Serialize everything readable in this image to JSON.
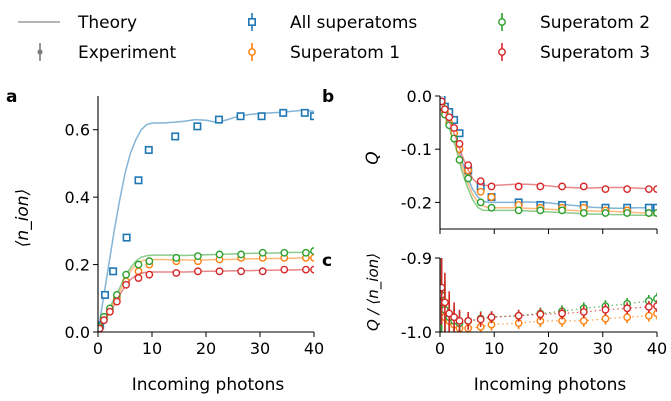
{
  "legend": [
    {
      "label": "Theory",
      "kind": "line",
      "color": "#a9a9a9"
    },
    {
      "label": "Experiment",
      "kind": "errpoint",
      "color": "#7f7f7f"
    },
    {
      "label": "All superatoms",
      "kind": "square",
      "color": "#1f77b4"
    },
    {
      "label": "Superatom 1",
      "kind": "circle",
      "color": "#ff7f0e"
    },
    {
      "label": "Superatom 2",
      "kind": "circle",
      "color": "#2ca02c"
    },
    {
      "label": "Superatom 3",
      "kind": "circle",
      "color": "#d62728"
    }
  ],
  "chart_data": [
    {
      "panel": "a",
      "type": "scatter",
      "xlabel": "Incoming photons",
      "ylabel": "⟨n_ion⟩",
      "xlim": [
        0,
        40
      ],
      "ylim": [
        0,
        0.7
      ],
      "xticks": [
        0,
        10,
        20,
        30,
        40
      ],
      "yticks": [
        0.0,
        0.2,
        0.4,
        0.6
      ],
      "ytick_labels": [
        "0.0",
        "0.2",
        "0.4",
        "0.6"
      ],
      "series": [
        {
          "name": "All superatoms",
          "color": "#1f77b4",
          "marker": "square",
          "x": [
            0.4,
            1.3,
            2.8,
            5.3,
            7.5,
            9.4,
            14.3,
            18.4,
            22.4,
            26.4,
            30.3,
            34.3,
            38.3,
            40
          ],
          "y": [
            0.02,
            0.11,
            0.18,
            0.28,
            0.45,
            0.54,
            0.58,
            0.61,
            0.63,
            0.64,
            0.64,
            0.65,
            0.65,
            0.64
          ],
          "theory_x": [
            0,
            1,
            2,
            3,
            4,
            5,
            6,
            7,
            8,
            9,
            10,
            12,
            14,
            16,
            18,
            20,
            22,
            24,
            26,
            28,
            30,
            32,
            34,
            36,
            38,
            40
          ],
          "theory_y": [
            0.0,
            0.1,
            0.2,
            0.3,
            0.39,
            0.47,
            0.53,
            0.57,
            0.6,
            0.615,
            0.62,
            0.62,
            0.622,
            0.625,
            0.63,
            0.628,
            0.622,
            0.63,
            0.64,
            0.645,
            0.648,
            0.65,
            0.652,
            0.655,
            0.658,
            0.655
          ]
        },
        {
          "name": "Superatom 1",
          "color": "#ff7f0e",
          "marker": "circle",
          "x": [
            0.3,
            1.1,
            2.2,
            3.5,
            5.2,
            7.5,
            9.5,
            14.5,
            18.5,
            22.5,
            26.5,
            30.5,
            34.5,
            38.5,
            40
          ],
          "y": [
            0.01,
            0.04,
            0.06,
            0.1,
            0.15,
            0.18,
            0.2,
            0.21,
            0.21,
            0.215,
            0.22,
            0.22,
            0.22,
            0.22,
            0.22
          ],
          "theory_x": [
            0,
            1,
            2,
            3,
            4,
            5,
            6,
            7,
            8,
            9,
            10,
            12,
            14,
            16,
            18,
            20,
            22,
            24,
            26,
            28,
            30,
            32,
            34,
            36,
            38,
            40
          ],
          "theory_y": [
            0.0,
            0.03,
            0.06,
            0.09,
            0.12,
            0.15,
            0.18,
            0.2,
            0.21,
            0.215,
            0.215,
            0.215,
            0.214,
            0.214,
            0.213,
            0.214,
            0.215,
            0.215,
            0.216,
            0.217,
            0.217,
            0.218,
            0.218,
            0.219,
            0.22,
            0.22
          ]
        },
        {
          "name": "Superatom 2",
          "color": "#2ca02c",
          "marker": "circle",
          "x": [
            0.3,
            1.1,
            2.2,
            3.5,
            5.2,
            7.5,
            9.5,
            14.5,
            18.5,
            22.5,
            26.5,
            30.5,
            34.5,
            38.5,
            40
          ],
          "y": [
            0.015,
            0.045,
            0.07,
            0.11,
            0.17,
            0.2,
            0.21,
            0.22,
            0.225,
            0.23,
            0.23,
            0.235,
            0.235,
            0.235,
            0.24
          ],
          "theory_x": [
            0,
            1,
            2,
            3,
            4,
            5,
            6,
            7,
            8,
            9,
            10,
            12,
            14,
            16,
            18,
            20,
            22,
            24,
            26,
            28,
            30,
            32,
            34,
            36,
            38,
            40
          ],
          "theory_y": [
            0.0,
            0.035,
            0.065,
            0.1,
            0.13,
            0.165,
            0.19,
            0.21,
            0.222,
            0.226,
            0.228,
            0.228,
            0.228,
            0.227,
            0.228,
            0.229,
            0.23,
            0.231,
            0.232,
            0.233,
            0.234,
            0.234,
            0.235,
            0.236,
            0.236,
            0.237
          ]
        },
        {
          "name": "Superatom 3",
          "color": "#d62728",
          "marker": "circle",
          "x": [
            0.3,
            1.1,
            2.2,
            3.5,
            5.2,
            7.5,
            9.5,
            14.5,
            18.5,
            22.5,
            26.5,
            30.5,
            34.5,
            38.5,
            40
          ],
          "y": [
            0.01,
            0.035,
            0.06,
            0.09,
            0.14,
            0.16,
            0.17,
            0.175,
            0.18,
            0.18,
            0.18,
            0.18,
            0.185,
            0.185,
            0.185
          ],
          "theory_x": [
            0,
            1,
            2,
            3,
            4,
            5,
            6,
            7,
            8,
            9,
            10,
            12,
            14,
            16,
            18,
            20,
            22,
            24,
            26,
            28,
            30,
            32,
            34,
            36,
            38,
            40
          ],
          "theory_y": [
            0.0,
            0.03,
            0.055,
            0.08,
            0.11,
            0.135,
            0.155,
            0.168,
            0.175,
            0.177,
            0.178,
            0.178,
            0.178,
            0.178,
            0.179,
            0.18,
            0.18,
            0.181,
            0.182,
            0.182,
            0.183,
            0.183,
            0.184,
            0.184,
            0.185,
            0.185
          ]
        }
      ]
    },
    {
      "panel": "b",
      "type": "scatter",
      "xlabel": "",
      "ylabel": "Q",
      "xlim": [
        0,
        40
      ],
      "ylim": [
        -0.25,
        0.0
      ],
      "xticks": [
        0,
        10,
        20,
        30,
        40
      ],
      "yticks": [
        0.0,
        -0.1,
        -0.2
      ],
      "ytick_labels": [
        "0.0",
        "-0.1",
        "-0.2"
      ],
      "series": [
        {
          "name": "All superatoms",
          "color": "#1f77b4",
          "marker": "square",
          "x": [
            0.3,
            0.9,
            1.7,
            2.6,
            3.6,
            5.2,
            7.5,
            9.5,
            14.5,
            18.5,
            22.5,
            26.5,
            30.5,
            34.5,
            38.5,
            40
          ],
          "y": [
            -0.005,
            -0.02,
            -0.03,
            -0.045,
            -0.07,
            -0.14,
            -0.17,
            -0.19,
            -0.2,
            -0.205,
            -0.205,
            -0.205,
            -0.21,
            -0.21,
            -0.21,
            -0.21
          ],
          "theory_x": [
            0,
            1,
            2,
            3,
            4,
            5,
            6,
            7,
            8,
            9,
            10,
            12,
            14,
            16,
            18,
            20,
            22,
            24,
            26,
            28,
            30,
            32,
            34,
            36,
            38,
            40
          ],
          "theory_y": [
            -0.005,
            -0.025,
            -0.05,
            -0.08,
            -0.12,
            -0.15,
            -0.175,
            -0.19,
            -0.198,
            -0.2,
            -0.2,
            -0.2,
            -0.2,
            -0.199,
            -0.2,
            -0.201,
            -0.203,
            -0.205,
            -0.207,
            -0.209,
            -0.21,
            -0.211,
            -0.211,
            -0.21,
            -0.21,
            -0.21
          ]
        },
        {
          "name": "Superatom 1",
          "color": "#ff7f0e",
          "marker": "circle",
          "x": [
            0.3,
            0.9,
            1.7,
            2.6,
            3.6,
            5.2,
            7.5,
            9.5,
            14.5,
            18.5,
            22.5,
            26.5,
            30.5,
            34.5,
            38.5,
            40
          ],
          "y": [
            -0.015,
            -0.03,
            -0.05,
            -0.07,
            -0.1,
            -0.14,
            -0.18,
            -0.19,
            -0.205,
            -0.21,
            -0.21,
            -0.21,
            -0.215,
            -0.215,
            -0.22,
            -0.22
          ],
          "theory_x": [
            0,
            1,
            2,
            3,
            4,
            5,
            6,
            7,
            8,
            9,
            10,
            12,
            14,
            16,
            18,
            20,
            22,
            24,
            26,
            28,
            30,
            32,
            34,
            36,
            38,
            40
          ],
          "theory_y": [
            -0.01,
            -0.035,
            -0.06,
            -0.09,
            -0.13,
            -0.16,
            -0.185,
            -0.2,
            -0.207,
            -0.21,
            -0.21,
            -0.21,
            -0.21,
            -0.211,
            -0.212,
            -0.213,
            -0.214,
            -0.215,
            -0.216,
            -0.216,
            -0.217,
            -0.217,
            -0.218,
            -0.219,
            -0.22,
            -0.22
          ]
        },
        {
          "name": "Superatom 2",
          "color": "#2ca02c",
          "marker": "circle",
          "x": [
            0.3,
            0.9,
            1.7,
            2.6,
            3.6,
            5.2,
            7.5,
            9.5,
            14.5,
            18.5,
            22.5,
            26.5,
            30.5,
            34.5,
            38.5,
            40
          ],
          "y": [
            -0.02,
            -0.035,
            -0.055,
            -0.08,
            -0.12,
            -0.155,
            -0.2,
            -0.21,
            -0.215,
            -0.215,
            -0.215,
            -0.22,
            -0.22,
            -0.22,
            -0.22,
            -0.22
          ],
          "theory_x": [
            0,
            1,
            2,
            3,
            4,
            5,
            6,
            7,
            8,
            9,
            10,
            12,
            14,
            16,
            18,
            20,
            22,
            24,
            26,
            28,
            30,
            32,
            34,
            36,
            38,
            40
          ],
          "theory_y": [
            -0.015,
            -0.04,
            -0.07,
            -0.1,
            -0.14,
            -0.17,
            -0.195,
            -0.21,
            -0.215,
            -0.215,
            -0.215,
            -0.215,
            -0.215,
            -0.216,
            -0.217,
            -0.218,
            -0.219,
            -0.22,
            -0.221,
            -0.222,
            -0.222,
            -0.223,
            -0.223,
            -0.224,
            -0.224,
            -0.225
          ]
        },
        {
          "name": "Superatom 3",
          "color": "#d62728",
          "marker": "circle",
          "x": [
            0.3,
            0.9,
            1.7,
            2.6,
            3.6,
            5.2,
            7.5,
            9.5,
            14.5,
            18.5,
            22.5,
            26.5,
            30.5,
            34.5,
            38.5,
            40
          ],
          "y": [
            -0.01,
            -0.025,
            -0.04,
            -0.06,
            -0.09,
            -0.13,
            -0.16,
            -0.17,
            -0.17,
            -0.17,
            -0.17,
            -0.17,
            -0.175,
            -0.175,
            -0.175,
            -0.175
          ],
          "theory_x": [
            0,
            1,
            2,
            3,
            4,
            5,
            6,
            7,
            8,
            9,
            10,
            12,
            14,
            16,
            18,
            20,
            22,
            24,
            26,
            28,
            30,
            32,
            34,
            36,
            38,
            40
          ],
          "theory_y": [
            -0.01,
            -0.03,
            -0.055,
            -0.08,
            -0.11,
            -0.135,
            -0.155,
            -0.165,
            -0.168,
            -0.168,
            -0.168,
            -0.167,
            -0.166,
            -0.166,
            -0.167,
            -0.169,
            -0.171,
            -0.172,
            -0.173,
            -0.173,
            -0.172,
            -0.172,
            -0.172,
            -0.173,
            -0.174,
            -0.175
          ]
        }
      ]
    },
    {
      "panel": "c",
      "type": "scatter",
      "xlabel": "Incoming photons",
      "ylabel": "Q / ⟨n_ion⟩",
      "xlim": [
        0,
        40
      ],
      "ylim": [
        -1.0,
        -0.9
      ],
      "xticks": [
        0,
        10,
        20,
        30,
        40
      ],
      "yticks": [
        -0.9,
        -1.0
      ],
      "ytick_labels": [
        "-0.9",
        "-1.0"
      ],
      "series": [
        {
          "name": "Superatom 1",
          "color": "#ff7f0e",
          "marker": "circle",
          "x": [
            0.3,
            0.9,
            1.7,
            2.6,
            3.6,
            5.2,
            7.5,
            9.5,
            14.5,
            18.5,
            22.5,
            26.5,
            30.5,
            34.5,
            38.5,
            40
          ],
          "y": [
            -0.96,
            -0.98,
            -0.985,
            -0.99,
            -0.995,
            -0.995,
            -0.993,
            -0.99,
            -0.988,
            -0.985,
            -0.985,
            -0.985,
            -0.982,
            -0.98,
            -0.978,
            -0.975
          ],
          "yerr": [
            0.05,
            0.04,
            0.03,
            0.02,
            0.015,
            0.012,
            0.01,
            0.008,
            0.008,
            0.008,
            0.008,
            0.008,
            0.008,
            0.008,
            0.008,
            0.008
          ]
        },
        {
          "name": "Superatom 2",
          "color": "#2ca02c",
          "marker": "circle",
          "x": [
            0.3,
            0.9,
            1.7,
            2.6,
            3.6,
            5.2,
            7.5,
            9.5,
            14.5,
            18.5,
            22.5,
            26.5,
            30.5,
            34.5,
            38.5,
            40
          ],
          "y": [
            -0.95,
            -0.97,
            -0.98,
            -0.985,
            -0.988,
            -0.985,
            -0.982,
            -0.98,
            -0.978,
            -0.975,
            -0.972,
            -0.968,
            -0.965,
            -0.962,
            -0.958,
            -0.955
          ],
          "yerr": [
            0.05,
            0.04,
            0.03,
            0.02,
            0.015,
            0.012,
            0.01,
            0.008,
            0.008,
            0.008,
            0.008,
            0.008,
            0.008,
            0.008,
            0.008,
            0.008
          ]
        },
        {
          "name": "Superatom 3",
          "color": "#d62728",
          "marker": "circle",
          "x": [
            0.3,
            0.9,
            1.7,
            2.6,
            3.6,
            5.2,
            7.5,
            9.5,
            14.5,
            18.5,
            22.5,
            26.5,
            30.5,
            34.5,
            38.5,
            40
          ],
          "y": [
            -0.94,
            -0.96,
            -0.975,
            -0.98,
            -0.985,
            -0.985,
            -0.983,
            -0.98,
            -0.978,
            -0.976,
            -0.975,
            -0.973,
            -0.97,
            -0.968,
            -0.966,
            -0.965
          ],
          "yerr": [
            0.05,
            0.04,
            0.03,
            0.02,
            0.015,
            0.012,
            0.01,
            0.008,
            0.008,
            0.008,
            0.008,
            0.008,
            0.008,
            0.008,
            0.008,
            0.008
          ]
        }
      ]
    }
  ]
}
